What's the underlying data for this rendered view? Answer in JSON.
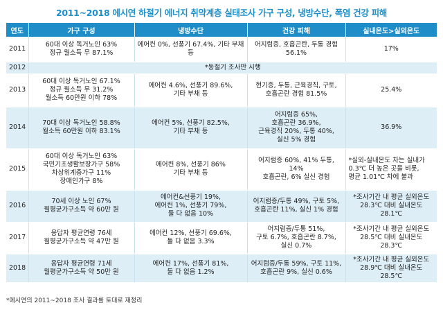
{
  "title": "2011~2018 에시연 하절기 에너지 취약계층 실태조사 가구 구성, 냉방수단, 폭염 건강 피해",
  "headers": [
    "연도",
    "가구 구성",
    "냉방수단",
    "건강 피해",
    "실내온도>실외온도"
  ],
  "rows": [
    {
      "year": "2011",
      "household": "60대 이상 독거노인 63%\n정규 월소득 무 87.1%",
      "cooling": "에어컨 0%, 선풍기 67.4%, 기타 부채 등",
      "health": "어지럼증, 호흡곤란, 두통 경험\n56.1%",
      "temp": "17%"
    },
    {
      "year": "2012",
      "note": "*동절기 조사만 시행"
    },
    {
      "year": "2013",
      "household": "60대 이상 독거노인 67.1%\n정규 월소득 무 31.2%\n월소득 60만원 이하 78%",
      "cooling": "에어컨 4.6%, 선풍기 89.6%,\n기타 부채 등",
      "health": "현기증, 두통, 근육경직, 구토,\n호흡곤란 경험 81.5%",
      "temp": "25.4%"
    },
    {
      "year": "2014",
      "household": "70대 이상 독거노인 58.8%\n월소득 60만원 이하 83.1%",
      "cooling": "에어컨 5%, 선풍기 82.5%,\n기타 부채 등",
      "health": "어지럼증 65%,\n호흡곤란 36.9%,\n근육경직 20%, 두통 40%,\n실신 5% 경험",
      "temp": "36.9%"
    },
    {
      "year": "2015",
      "household": "60대 이상 독거노인 63%\n국민기초생활보장가구 58%\n차상위계층가구 11%\n장애인가구 8%",
      "cooling": "에어컨 8%, 선풍기 86%\n기타 부채 등",
      "health": "어지럼증 60%, 41% 두통, 14%\n호흡곤란, 6% 실신 경험",
      "temp": "*실외-실내온도 차는 실내가\n0.3℃ 더 높은 곳을 비롯,\n평균 1.01℃ 차에 불과"
    },
    {
      "year": "2016",
      "household": "70세 이상 노인 67%\n월평균가구소득 약 60만 원",
      "cooling": "에어컨&선풍기 19%,\n에어컨 1%, 선풍기 79%,\n둘 다 없음 10%",
      "health": "어지럼증/두통 49%, 구토 5%,\n호흡곤란 11%, 실신 1% 경험",
      "temp": "*조사기간 내 평균 실외온도\n28.3℃ 대비 실내온도 28.1℃"
    },
    {
      "year": "2017",
      "household": "응답자 평균연령 76세\n월평균가구소득 약 47만 원",
      "cooling": "에어컨 12%, 선풍기 69.6%,\n둘 다 없음 3.3%",
      "health": "어지럼증/두통 51%,\n구토 6.7%, 호흡곤란 8.7%,\n실신 0.7%",
      "temp": "*조사기간 내 평균 실외온도\n28.5℃ 대비 실내온도 28.3℃"
    },
    {
      "year": "2018",
      "household": "응답자 평균연령 71세\n월평균가구소득 약 50만 원",
      "cooling": "에어컨 17%, 선풍기 81%,\n둘 다 없음 1.2%",
      "health": "어지럼증/두통 59%, 구토 11%,\n호흡곤란 9%, 실신 0.6%",
      "temp": "*조사기간 내 평균 실외온도\n28.9℃ 대비 실내온도 28.5℃"
    }
  ],
  "footnote": "*에시연의 2011~2018 조사 결과를 토대로 재정리"
}
